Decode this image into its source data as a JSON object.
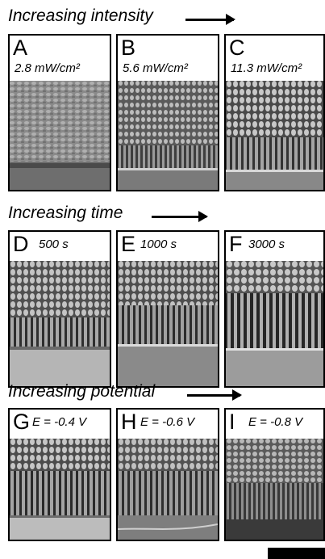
{
  "rows": [
    {
      "title": "Increasing intensity",
      "panels": [
        {
          "letter": "A",
          "condition": "2.8 mW/cm²"
        },
        {
          "letter": "B",
          "condition": "5.6 mW/cm²"
        },
        {
          "letter": "C",
          "condition": "11.3 mW/cm²"
        }
      ]
    },
    {
      "title": "Increasing time",
      "panels": [
        {
          "letter": "D",
          "condition": "500 s"
        },
        {
          "letter": "E",
          "condition": "1000 s"
        },
        {
          "letter": "F",
          "condition": "3000 s"
        }
      ]
    },
    {
      "title": "Increasing potential",
      "panels": [
        {
          "letter": "G",
          "condition": "E = -0.4 V"
        },
        {
          "letter": "H",
          "condition": "E = -0.6 V"
        },
        {
          "letter": "I",
          "condition": "E = -0.8 V"
        }
      ]
    }
  ]
}
